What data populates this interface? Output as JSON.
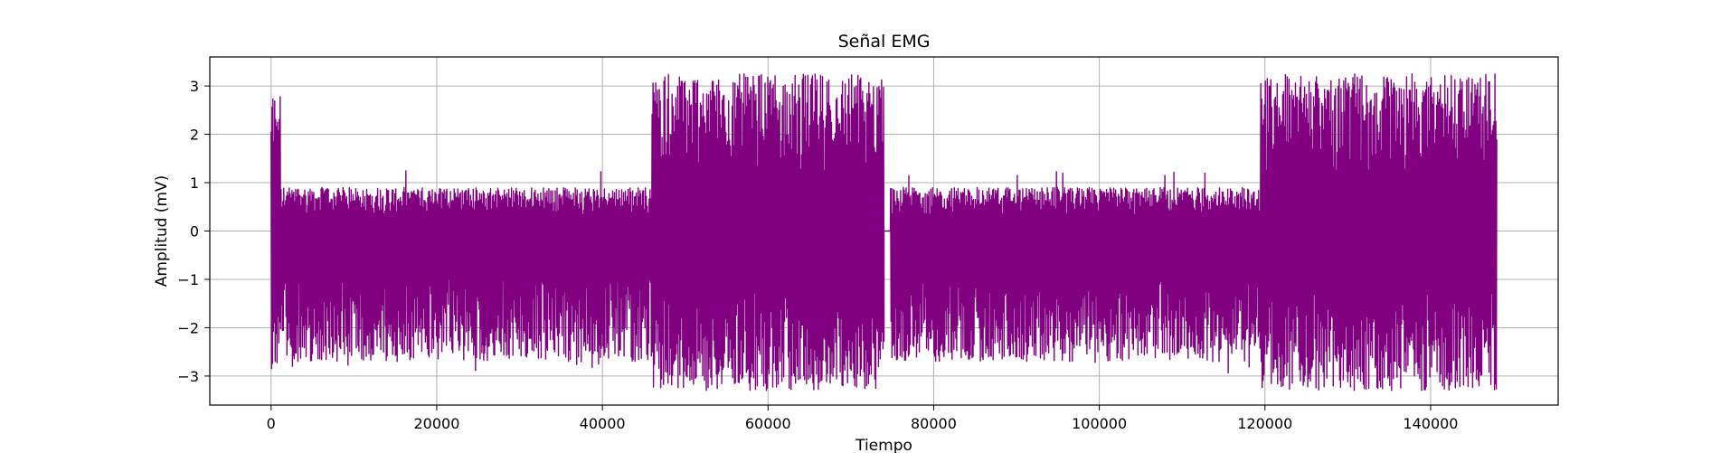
{
  "chart_data": {
    "type": "line",
    "title": "Señal EMG",
    "xlabel": "Tiempo",
    "ylabel": "Amplitud (mV)",
    "xlim": [
      -7400,
      155400
    ],
    "ylim": [
      -3.6,
      3.6
    ],
    "xticks": [
      0,
      20000,
      40000,
      60000,
      80000,
      100000,
      120000,
      140000
    ],
    "xtick_labels": [
      "0",
      "20000",
      "40000",
      "60000",
      "80000",
      "100000",
      "120000",
      "140000"
    ],
    "yticks": [
      3,
      2,
      1,
      0,
      -1,
      -2,
      -3
    ],
    "ytick_labels": [
      "3",
      "2",
      "1",
      "0",
      "−1",
      "−2",
      "−3"
    ],
    "grid": true,
    "series": [
      {
        "color": "#800080",
        "x_range": [
          0,
          148000
        ],
        "segments": [
          {
            "x": [
              0,
              1200
            ],
            "min": -2.85,
            "max": 2.9
          },
          {
            "x": [
              1200,
              46000
            ],
            "min": -2.7,
            "max": 0.9,
            "peak_max": 1.25,
            "peak_min": -2.95
          },
          {
            "x": [
              46000,
              74000
            ],
            "min": -3.3,
            "max": 3.25
          },
          {
            "x": [
              74000,
              74800
            ],
            "min": 0.0,
            "max": 0.0
          },
          {
            "x": [
              74800,
              119500
            ],
            "min": -2.7,
            "max": 0.9,
            "peak_max": 1.25,
            "peak_min": -2.95
          },
          {
            "x": [
              119500,
              148000
            ],
            "min": -3.3,
            "max": 3.25
          }
        ]
      }
    ]
  }
}
